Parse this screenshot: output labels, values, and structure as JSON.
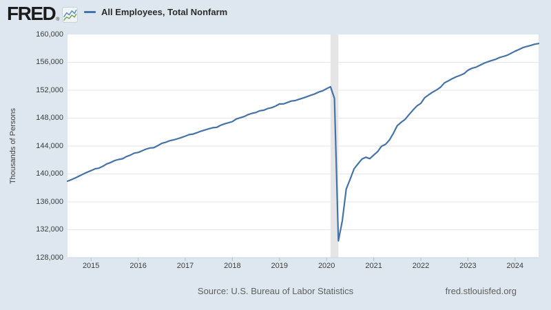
{
  "header": {
    "logo_text": "FRED",
    "registered_mark": "®",
    "logo_icon": "sparkline-chart-icon"
  },
  "footer": {
    "source": "Source: U.S. Bureau of Labor Statistics",
    "site": "fred.stlouisfed.org"
  },
  "colors": {
    "background": "#dee7ef",
    "plot_background": "#ffffff",
    "gridline": "#e6e6e6",
    "axis_line": "#ccd6e0",
    "tick_mark": "#b0bfcc",
    "recession_band": "#e5e5e5",
    "line": "#4472a8",
    "tick_label": "#3d3d3d",
    "footer_text": "#5f5f5f"
  },
  "chart_data": {
    "type": "line",
    "title": "All Employees, Total Nonfarm",
    "ylabel": "Thousands of Persons",
    "xlabel": "",
    "grid": true,
    "legend_position": "top",
    "xlim_years": [
      2014.5,
      2024.5833
    ],
    "ylim": [
      128000,
      160000
    ],
    "y_ticks": [
      {
        "value": 160000,
        "label": "160,000"
      },
      {
        "value": 156000,
        "label": "156,000"
      },
      {
        "value": 152000,
        "label": "152,000"
      },
      {
        "value": 148000,
        "label": "148,000"
      },
      {
        "value": 144000,
        "label": "144,000"
      },
      {
        "value": 140000,
        "label": "140,000"
      },
      {
        "value": 136000,
        "label": "136,000"
      },
      {
        "value": 132000,
        "label": "132,000"
      },
      {
        "value": 128000,
        "label": "128,000"
      }
    ],
    "x_ticks": [
      {
        "year": 2015,
        "label": "2015"
      },
      {
        "year": 2016,
        "label": "2016"
      },
      {
        "year": 2017,
        "label": "2017"
      },
      {
        "year": 2018,
        "label": "2018"
      },
      {
        "year": 2019,
        "label": "2019"
      },
      {
        "year": 2020,
        "label": "2020"
      },
      {
        "year": 2021,
        "label": "2021"
      },
      {
        "year": 2022,
        "label": "2022"
      },
      {
        "year": 2023,
        "label": "2023"
      },
      {
        "year": 2024,
        "label": "2024"
      }
    ],
    "recession_band": {
      "start_year": 2020.0833,
      "end_year": 2020.25,
      "note": "COVID-19 recession shading Feb–Apr 2020"
    },
    "series": [
      {
        "name": "All Employees, Total Nonfarm",
        "color": "#4472a8",
        "frequency": "monthly",
        "start": "2014-07",
        "end": "2024-07",
        "values": [
          138960,
          139180,
          139440,
          139700,
          139990,
          140250,
          140470,
          140730,
          140830,
          141110,
          141440,
          141640,
          141920,
          142070,
          142170,
          142490,
          142700,
          142980,
          143080,
          143320,
          143560,
          143720,
          143760,
          144060,
          144390,
          144530,
          144760,
          144880,
          145040,
          145210,
          145420,
          145640,
          145720,
          145920,
          146130,
          146300,
          146480,
          146630,
          146680,
          146970,
          147180,
          147340,
          147510,
          147880,
          148060,
          148230,
          148500,
          148690,
          148810,
          149060,
          149140,
          149370,
          149500,
          149730,
          150030,
          150030,
          150240,
          150450,
          150520,
          150710,
          150880,
          151080,
          151290,
          151480,
          151740,
          151920,
          152230,
          152500,
          150820,
          130400,
          133290,
          137850,
          139250,
          140740,
          141450,
          142130,
          142400,
          142190,
          142710,
          143200,
          143980,
          144250,
          144860,
          145830,
          146920,
          147410,
          147830,
          148510,
          149160,
          149750,
          150120,
          150930,
          151350,
          151720,
          152040,
          152420,
          153060,
          153340,
          153660,
          153930,
          154130,
          154380,
          154860,
          155150,
          155290,
          155570,
          155850,
          156070,
          156260,
          156420,
          156680,
          156840,
          157020,
          157300,
          157600,
          157840,
          158110,
          158280,
          158430,
          158600,
          158700
        ]
      }
    ]
  }
}
